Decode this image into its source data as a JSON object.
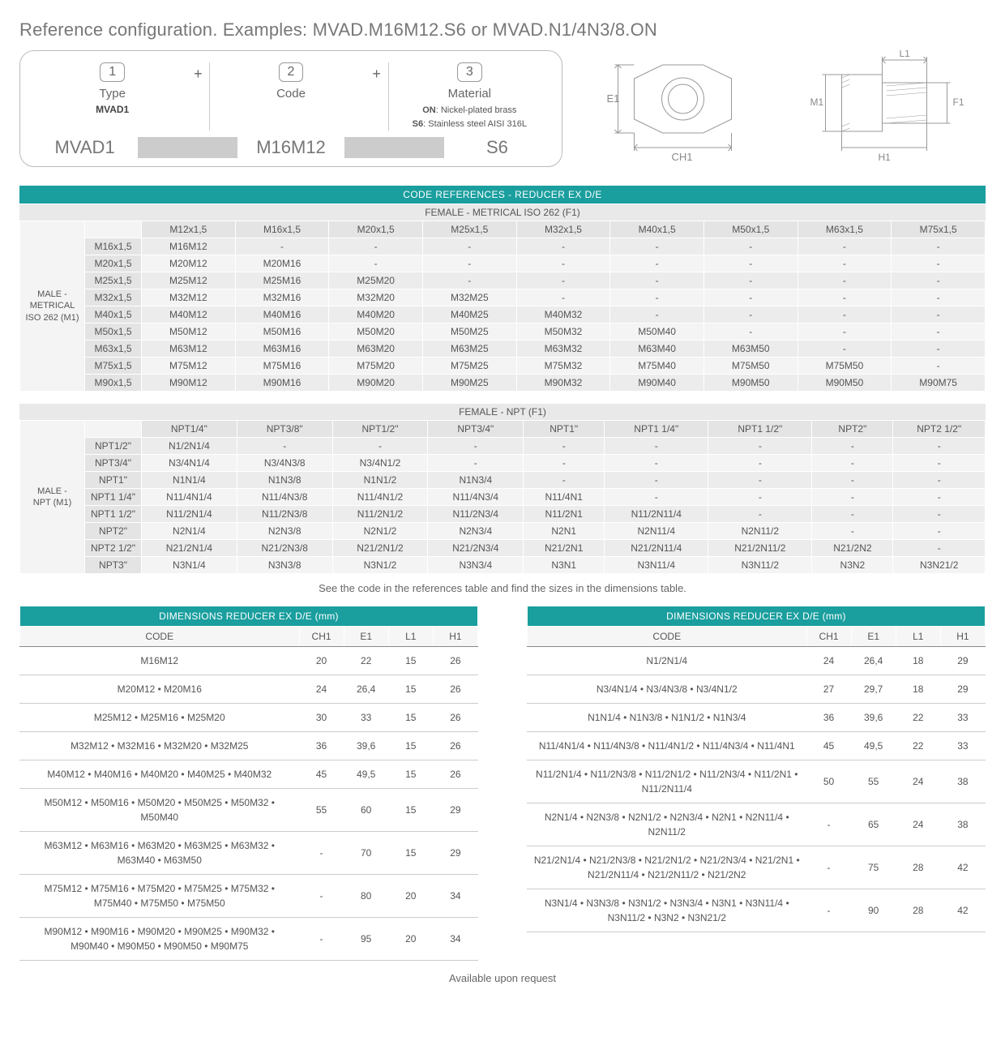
{
  "title": "Reference configuration. Examples: MVAD.M16M12.S6 or MVAD.N1/4N3/8.ON",
  "config": {
    "steps": [
      {
        "idx": "1",
        "label": "Type",
        "bold": "MVAD1",
        "example": "MVAD1"
      },
      {
        "idx": "2",
        "label": "Code",
        "bold": "",
        "example": "M16M12"
      },
      {
        "idx": "3",
        "label": "Material",
        "bold": "",
        "example": "S6"
      }
    ],
    "material_lines": [
      {
        "code": "ON",
        "desc": ": Nickel-plated brass"
      },
      {
        "code": "S6",
        "desc": ": Stainless steel AISI 316L"
      }
    ]
  },
  "drawing_labels": {
    "e1": "E1",
    "ch1": "CH1",
    "l1": "L1",
    "m1": "M1",
    "f1": "F1",
    "h1": "H1"
  },
  "codebar": "CODE REFERENCES - REDUCER EX D/E",
  "tables": [
    {
      "female_label": "FEMALE - METRICAL ISO 262 (F1)",
      "male_label": "MALE - METRICAL ISO 262 (M1)",
      "cols": [
        "M12x1,5",
        "M16x1,5",
        "M20x1,5",
        "M25x1,5",
        "M32x1,5",
        "M40x1,5",
        "M50x1,5",
        "M63x1,5",
        "M75x1,5"
      ],
      "rows": [
        {
          "h": "M16x1,5",
          "c": [
            "M16M12",
            "-",
            "-",
            "-",
            "-",
            "-",
            "-",
            "-",
            "-"
          ]
        },
        {
          "h": "M20x1,5",
          "c": [
            "M20M12",
            "M20M16",
            "-",
            "-",
            "-",
            "-",
            "-",
            "-",
            "-"
          ]
        },
        {
          "h": "M25x1,5",
          "c": [
            "M25M12",
            "M25M16",
            "M25M20",
            "-",
            "-",
            "-",
            "-",
            "-",
            "-"
          ]
        },
        {
          "h": "M32x1,5",
          "c": [
            "M32M12",
            "M32M16",
            "M32M20",
            "M32M25",
            "-",
            "-",
            "-",
            "-",
            "-"
          ]
        },
        {
          "h": "M40x1,5",
          "c": [
            "M40M12",
            "M40M16",
            "M40M20",
            "M40M25",
            "M40M32",
            "-",
            "-",
            "-",
            "-"
          ]
        },
        {
          "h": "M50x1,5",
          "c": [
            "M50M12",
            "M50M16",
            "M50M20",
            "M50M25",
            "M50M32",
            "M50M40",
            "-",
            "-",
            "-"
          ]
        },
        {
          "h": "M63x1,5",
          "c": [
            "M63M12",
            "M63M16",
            "M63M20",
            "M63M25",
            "M63M32",
            "M63M40",
            "M63M50",
            "-",
            "-"
          ]
        },
        {
          "h": "M75x1,5",
          "c": [
            "M75M12",
            "M75M16",
            "M75M20",
            "M75M25",
            "M75M32",
            "M75M40",
            "M75M50",
            "M75M50",
            "-"
          ]
        },
        {
          "h": "M90x1,5",
          "c": [
            "M90M12",
            "M90M16",
            "M90M20",
            "M90M25",
            "M90M32",
            "M90M40",
            "M90M50",
            "M90M50",
            "M90M75"
          ]
        }
      ]
    },
    {
      "female_label": "FEMALE - NPT (F1)",
      "male_label": "MALE - NPT (M1)",
      "cols": [
        "NPT1/4\"",
        "NPT3/8\"",
        "NPT1/2\"",
        "NPT3/4\"",
        "NPT1\"",
        "NPT1 1/4\"",
        "NPT1 1/2\"",
        "NPT2\"",
        "NPT2 1/2\""
      ],
      "rows": [
        {
          "h": "NPT1/2\"",
          "c": [
            "N1/2N1/4",
            "-",
            "-",
            "-",
            "-",
            "-",
            "-",
            "-",
            "-"
          ]
        },
        {
          "h": "NPT3/4\"",
          "c": [
            "N3/4N1/4",
            "N3/4N3/8",
            "N3/4N1/2",
            "-",
            "-",
            "-",
            "-",
            "-",
            "-"
          ]
        },
        {
          "h": "NPT1\"",
          "c": [
            "N1N1/4",
            "N1N3/8",
            "N1N1/2",
            "N1N3/4",
            "-",
            "-",
            "-",
            "-",
            "-"
          ]
        },
        {
          "h": "NPT1 1/4\"",
          "c": [
            "N11/4N1/4",
            "N11/4N3/8",
            "N11/4N1/2",
            "N11/4N3/4",
            "N11/4N1",
            "-",
            "-",
            "-",
            "-"
          ]
        },
        {
          "h": "NPT1 1/2\"",
          "c": [
            "N11/2N1/4",
            "N11/2N3/8",
            "N11/2N1/2",
            "N11/2N3/4",
            "N11/2N1",
            "N11/2N11/4",
            "-",
            "-",
            "-"
          ]
        },
        {
          "h": "NPT2\"",
          "c": [
            "N2N1/4",
            "N2N3/8",
            "N2N1/2",
            "N2N3/4",
            "N2N1",
            "N2N11/4",
            "N2N11/2",
            "-",
            "-"
          ]
        },
        {
          "h": "NPT2 1/2\"",
          "c": [
            "N21/2N1/4",
            "N21/2N3/8",
            "N21/2N1/2",
            "N21/2N3/4",
            "N21/2N1",
            "N21/2N11/4",
            "N21/2N11/2",
            "N21/2N2",
            "-"
          ]
        },
        {
          "h": "NPT3\"",
          "c": [
            "N3N1/4",
            "N3N3/8",
            "N3N1/2",
            "N3N3/4",
            "N3N1",
            "N3N11/4",
            "N3N11/2",
            "N3N2",
            "N3N21/2"
          ]
        }
      ]
    }
  ],
  "midnote": "See the code in the references table and find the sizes in the dimensions table.",
  "dimheader": "DIMENSIONS REDUCER EX D/E (mm)",
  "dimcols": [
    "CODE",
    "CH1",
    "E1",
    "L1",
    "H1"
  ],
  "dimL": [
    {
      "code": "M16M12",
      "v": [
        "20",
        "22",
        "15",
        "26"
      ]
    },
    {
      "code": "M20M12 • M20M16",
      "v": [
        "24",
        "26,4",
        "15",
        "26"
      ]
    },
    {
      "code": "M25M12 • M25M16 • M25M20",
      "v": [
        "30",
        "33",
        "15",
        "26"
      ]
    },
    {
      "code": "M32M12 • M32M16 • M32M20 • M32M25",
      "v": [
        "36",
        "39,6",
        "15",
        "26"
      ]
    },
    {
      "code": "M40M12 • M40M16 • M40M20 • M40M25 • M40M32",
      "v": [
        "45",
        "49,5",
        "15",
        "26"
      ]
    },
    {
      "code": "M50M12 • M50M16 • M50M20 • M50M25 • M50M32 • M50M40",
      "v": [
        "55",
        "60",
        "15",
        "29"
      ]
    },
    {
      "code": "M63M12 • M63M16 • M63M20 • M63M25 • M63M32 • M63M40 • M63M50",
      "v": [
        "-",
        "70",
        "15",
        "29"
      ]
    },
    {
      "code": "M75M12 • M75M16 • M75M20 • M75M25 • M75M32 • M75M40 • M75M50 • M75M50",
      "v": [
        "-",
        "80",
        "20",
        "34"
      ]
    },
    {
      "code": "M90M12 • M90M16 • M90M20 • M90M25 • M90M32 • M90M40 • M90M50 • M90M50 • M90M75",
      "v": [
        "-",
        "95",
        "20",
        "34"
      ]
    }
  ],
  "dimR": [
    {
      "code": "N1/2N1/4",
      "v": [
        "24",
        "26,4",
        "18",
        "29"
      ]
    },
    {
      "code": "N3/4N1/4 • N3/4N3/8 • N3/4N1/2",
      "v": [
        "27",
        "29,7",
        "18",
        "29"
      ]
    },
    {
      "code": "N1N1/4 • N1N3/8 • N1N1/2 • N1N3/4",
      "v": [
        "36",
        "39,6",
        "22",
        "33"
      ]
    },
    {
      "code": "N11/4N1/4 • N11/4N3/8 • N11/4N1/2 • N11/4N3/4 • N11/4N1",
      "v": [
        "45",
        "49,5",
        "22",
        "33"
      ]
    },
    {
      "code": "N11/2N1/4 • N11/2N3/8 • N11/2N1/2 • N11/2N3/4 • N11/2N1 • N11/2N11/4",
      "v": [
        "50",
        "55",
        "24",
        "38"
      ]
    },
    {
      "code": "N2N1/4 • N2N3/8 • N2N1/2 • N2N3/4 • N2N1 • N2N11/4 • N2N11/2",
      "v": [
        "-",
        "65",
        "24",
        "38"
      ]
    },
    {
      "code": "N21/2N1/4 • N21/2N3/8 • N21/2N1/2 • N21/2N3/4 • N21/2N1 • N21/2N11/4 • N21/2N11/2 • N21/2N2",
      "v": [
        "-",
        "75",
        "28",
        "42"
      ]
    },
    {
      "code": "N3N1/4 • N3N3/8 • N3N1/2 • N3N3/4 • N3N1 • N3N11/4 • N3N11/2 • N3N2 • N3N21/2",
      "v": [
        "-",
        "90",
        "28",
        "42"
      ]
    }
  ],
  "footer": "Available upon request",
  "colors": {
    "teal": "#1a9e9e",
    "grey1": "#e9e9e9",
    "grey2": "#d6d6d6",
    "text": "#555"
  }
}
